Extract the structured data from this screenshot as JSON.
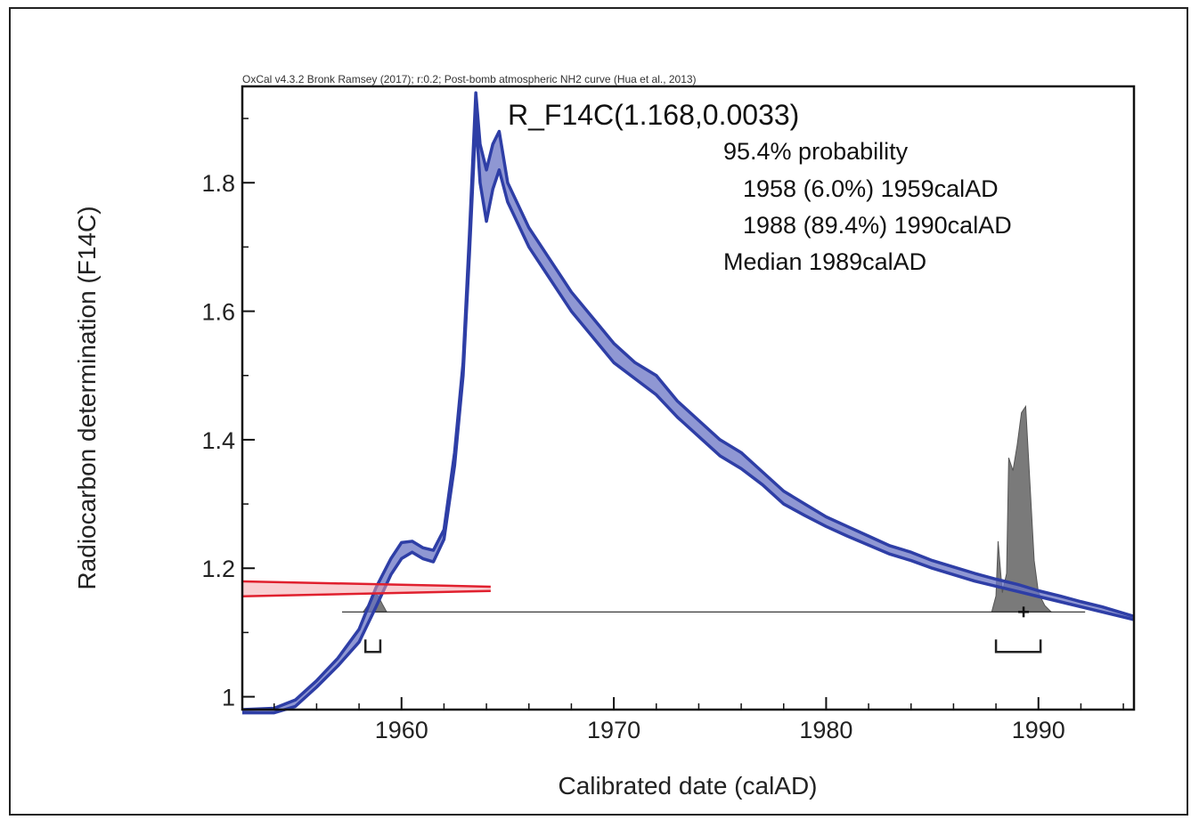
{
  "header": "OxCal v4.3.2 Bronk Ramsey (2017); r:0.2; Post-bomb atmospheric NH2 curve (Hua et al., 2013)",
  "chart_data": {
    "type": "line",
    "title": "R_F14C(1.168,0.0033)",
    "xlabel": "Calibrated date (calAD)",
    "ylabel": "Radiocarbon determination (F14C)",
    "xlim": [
      1952.5,
      1994.5
    ],
    "ylim": [
      0.98,
      1.95
    ],
    "x_ticks": [
      1960,
      1970,
      1980,
      1990
    ],
    "y_ticks": [
      1,
      1.2,
      1.4,
      1.6,
      1.8
    ],
    "x_tick_labels": [
      "1960",
      "1970",
      "1980",
      "1990"
    ],
    "y_tick_labels": [
      "1",
      "1.2",
      "1.4",
      "1.6",
      "1.8"
    ],
    "annotations": [
      "95.4% probability",
      "1958 (6.0%) 1959calAD",
      "1988 (89.4%) 1990calAD",
      "Median 1989calAD"
    ],
    "series": [
      {
        "name": "",
        "kind": "calibration-curve-band",
        "color": "#2e3ea6",
        "fill": "#6a74c4",
        "x": [
          1952.5,
          1954.0,
          1955.0,
          1956.0,
          1957.0,
          1958.0,
          1958.8,
          1959.5,
          1960.0,
          1960.5,
          1961.0,
          1961.5,
          1962.0,
          1962.5,
          1962.9,
          1963.2,
          1963.5,
          1963.7,
          1964.0,
          1964.3,
          1964.6,
          1965.0,
          1966.0,
          1967.0,
          1968.0,
          1969.0,
          1970.0,
          1971.0,
          1972.0,
          1973.0,
          1974.0,
          1975.0,
          1976.0,
          1977.0,
          1978.0,
          1979.0,
          1980.0,
          1981.0,
          1982.0,
          1983.0,
          1984.0,
          1985.0,
          1986.0,
          1987.0,
          1988.0,
          1989.0,
          1990.0,
          1991.0,
          1992.0,
          1993.0,
          1994.5
        ],
        "upper": [
          0.98,
          0.982,
          0.995,
          1.025,
          1.06,
          1.105,
          1.17,
          1.215,
          1.24,
          1.242,
          1.232,
          1.228,
          1.26,
          1.38,
          1.52,
          1.72,
          1.94,
          1.86,
          1.82,
          1.86,
          1.88,
          1.8,
          1.73,
          1.68,
          1.63,
          1.59,
          1.55,
          1.52,
          1.5,
          1.46,
          1.43,
          1.4,
          1.38,
          1.35,
          1.32,
          1.3,
          1.28,
          1.265,
          1.25,
          1.235,
          1.225,
          1.212,
          1.202,
          1.192,
          1.183,
          1.175,
          1.165,
          1.157,
          1.148,
          1.14,
          1.125
        ],
        "lower": [
          0.975,
          0.975,
          0.985,
          1.015,
          1.048,
          1.085,
          1.14,
          1.19,
          1.215,
          1.225,
          1.215,
          1.21,
          1.245,
          1.36,
          1.5,
          1.69,
          1.9,
          1.8,
          1.74,
          1.79,
          1.82,
          1.77,
          1.7,
          1.65,
          1.6,
          1.56,
          1.52,
          1.495,
          1.47,
          1.435,
          1.405,
          1.375,
          1.355,
          1.33,
          1.3,
          1.282,
          1.265,
          1.25,
          1.236,
          1.222,
          1.212,
          1.2,
          1.19,
          1.18,
          1.172,
          1.164,
          1.156,
          1.148,
          1.14,
          1.132,
          1.12
        ]
      },
      {
        "name": "",
        "kind": "measurement",
        "color": "#e0202e",
        "value": 1.168,
        "error": 0.0033,
        "x_start": 1952.5,
        "x_end": 1964.2
      },
      {
        "name": "",
        "kind": "calibrated-probability",
        "color": "#7a7a7a",
        "baseline_y": 1.132,
        "x": [
          1958.2,
          1958.5,
          1958.7,
          1958.9,
          1959.1,
          1959.3,
          1987.8,
          1988.0,
          1988.1,
          1988.3,
          1988.5,
          1988.6,
          1988.8,
          1989.0,
          1989.2,
          1989.4,
          1989.6,
          1989.8,
          1990.0,
          1990.3,
          1990.6
        ],
        "height": [
          0.0,
          0.015,
          0.03,
          0.025,
          0.012,
          0.0,
          0.0,
          0.025,
          0.11,
          0.03,
          0.06,
          0.24,
          0.22,
          0.26,
          0.31,
          0.32,
          0.2,
          0.08,
          0.03,
          0.01,
          0.0
        ]
      }
    ],
    "ranges_95": [
      [
        1958.3,
        1959.0
      ],
      [
        1988.0,
        1990.1
      ]
    ],
    "median": 1989.3
  }
}
